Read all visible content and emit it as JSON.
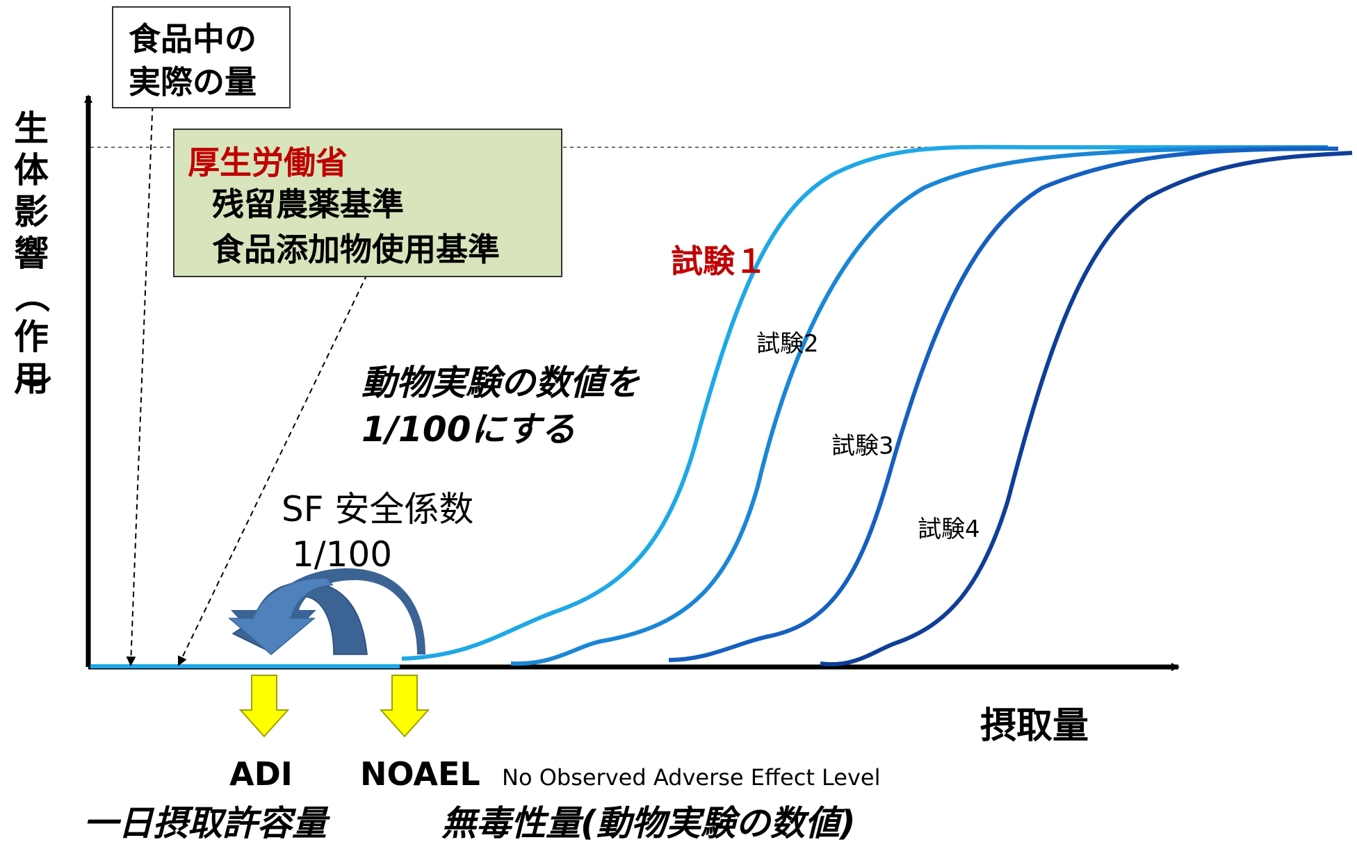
{
  "boxes": {
    "actual_amount": {
      "lines": [
        "食品中の",
        "実際の量"
      ]
    },
    "mhlw": {
      "org": "厚生労働省",
      "items": [
        "残留農薬基準",
        "食品添加物使用基準"
      ],
      "fill": "#d8e4bc",
      "org_color": "#c00000"
    }
  },
  "axes": {
    "y_label_chars": [
      "生",
      "体",
      "影",
      "響",
      "（",
      "作",
      "用",
      "）"
    ],
    "x_label": "摂取量"
  },
  "curves": [
    {
      "label": "試験１",
      "color": "#1fa8e6",
      "highlight": true
    },
    {
      "label": "試験2",
      "color": "#1a86d6"
    },
    {
      "label": "試験3",
      "color": "#1560c0"
    },
    {
      "label": "試験4",
      "color": "#0f3e98"
    }
  ],
  "annotations": {
    "reduce_note": [
      "動物実験の数値を",
      "1/100にする"
    ],
    "safety_factor": [
      "SF 安全係数",
      "1/100"
    ],
    "adi": "ADI",
    "noael": "NOAEL",
    "noael_full": "No Observed Adverse Effect Level",
    "adi_jp": "一日摂取許容量",
    "noael_jp": "無毒性量(動物実験の数値)"
  },
  "colors": {
    "axis": "#000000",
    "baseline": "#1fa8e6",
    "label_red": "#c00000",
    "arrow_light": "#4f81bd",
    "arrow_dark": "#3b6494",
    "marker_fill": "#ffff00",
    "marker_stroke": "#9ba300"
  }
}
